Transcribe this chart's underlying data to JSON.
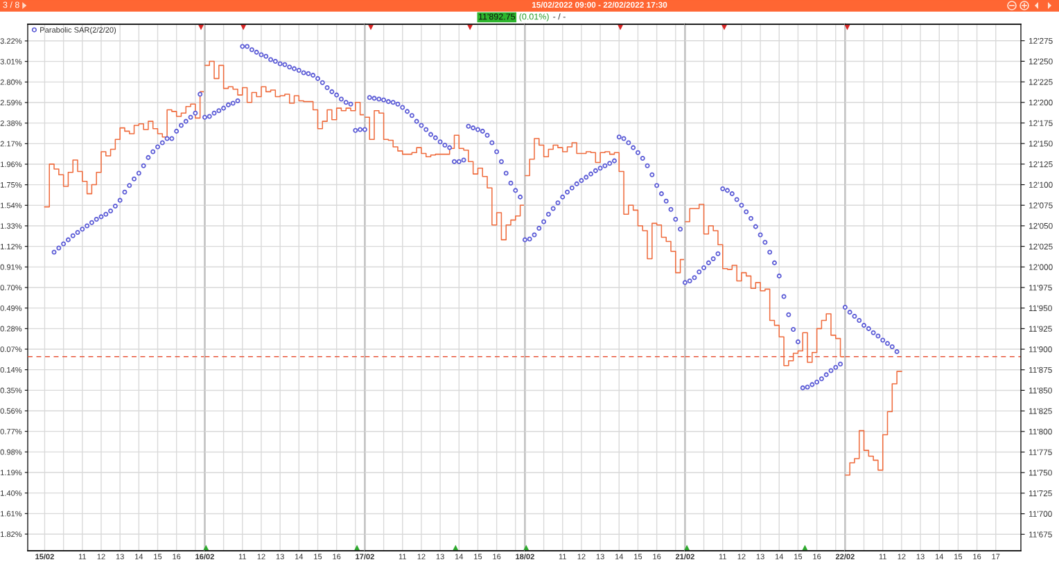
{
  "chart_data": [
    {
      "type": "step",
      "annotations": [
        "3 / 8"
      ],
      "legend": "top left",
      "grid": true,
      "xlim": [
        "2022-02-15T08:06",
        "2022-02-15T17:30"
      ],
      "xticks": [
        {
          "value": "2022-02-15T09:00",
          "label": "15/02"
        },
        {
          "value": "2022-02-15T10:00",
          "label": null
        },
        {
          "value": "2022-02-15T11:00",
          "label": "11"
        },
        {
          "value": "2022-02-15T12:00",
          "label": "12"
        },
        {
          "value": "2022-02-15T13:00",
          "label": "13"
        },
        {
          "value": "2022-02-15T14:00",
          "label": "14"
        },
        {
          "value": "2022-02-15T15:00",
          "label": "15"
        },
        {
          "value": "2022-02-15T16:00",
          "label": "16"
        },
        {
          "value": "2022-02-15T17:00",
          "label": null
        }
      ],
      "ylim": [
        -1.99,
        3.39
      ],
      "yticks": [
        {
          "value": 3.22,
          "label": "3.22%"
        },
        {
          "value": 3.01,
          "label": "3.01%"
        },
        {
          "value": 2.8,
          "label": "2.80%"
        },
        {
          "value": 2.59,
          "label": "2.59%"
        },
        {
          "value": 2.38,
          "label": "2.38%"
        },
        {
          "value": 2.17,
          "label": "2.17%"
        },
        {
          "value": 1.96,
          "label": "1.96%"
        },
        {
          "value": 1.75,
          "label": "1.75%"
        },
        {
          "value": 1.54,
          "label": "1.54%"
        },
        {
          "value": 1.33,
          "label": "1.33%"
        },
        {
          "value": 1.12,
          "label": "1.12%"
        },
        {
          "value": 0.91,
          "label": "0.91%"
        },
        {
          "value": 0.7,
          "label": "0.70%"
        },
        {
          "value": 0.49,
          "label": "0.49%"
        },
        {
          "value": 0.28,
          "label": "0.28%"
        },
        {
          "value": 0.07,
          "label": "0.07%"
        },
        {
          "value": -0.14,
          "label": "0.14%"
        },
        {
          "value": -0.35,
          "label": "0.35%"
        },
        {
          "value": -0.56,
          "label": "0.56%"
        },
        {
          "value": -0.77,
          "label": "0.77%"
        },
        {
          "value": -0.98,
          "label": "0.98%"
        },
        {
          "value": -1.19,
          "label": "1.19%"
        },
        {
          "value": -1.4,
          "label": "1.40%"
        },
        {
          "value": -1.61,
          "label": "1.61%"
        },
        {
          "value": -1.82,
          "label": "1.82%"
        }
      ],
      "y2lim": [
        11655,
        12295
      ],
      "x": [
        "2022-02-15T09:00",
        "2022-02-15T09:15",
        "2022-02-15T09:30",
        "2022-02-15T09:45",
        "2022-02-15T10:00",
        "2022-02-15T10:15",
        "2022-02-15T10:30",
        "2022-02-15T10:45",
        "2022-02-15T11:00",
        "2022-02-15T11:15",
        "2022-02-15T11:30",
        "2022-02-15T11:45",
        "2022-02-15T12:00",
        "2022-02-15T12:15",
        "2022-02-15T12:30",
        "2022-02-15T12:45",
        "2022-02-15T13:00",
        "2022-02-15T13:15",
        "2022-02-15T13:30",
        "2022-02-15T13:45",
        "2022-02-15T14:00",
        "2022-02-15T14:15",
        "2022-02-15T14:30",
        "2022-02-15T14:45",
        "2022-02-15T15:00",
        "2022-02-15T15:15",
        "2022-02-15T15:30",
        "2022-02-15T15:45",
        "2022-02-15T16:00",
        "2022-02-15T16:15",
        "2022-02-15T16:30",
        "2022-02-15T16:45",
        "2022-02-15T17:00",
        "2022-02-15T17:15",
        "2022-02-15T17:30"
      ],
      "series": [
        {
          "color": "#ef6a3b",
          "axis": "y2",
          "values": [
            12073,
            12125,
            12119,
            12112,
            12098,
            12115,
            12130,
            12116,
            12104,
            12089,
            12100,
            12115,
            12140,
            12135,
            12143,
            12155,
            12169,
            12165,
            12162,
            12172,
            12174,
            12167,
            12177,
            12168,
            12162,
            12158,
            12191,
            12189,
            12183,
            12187,
            12195,
            12198,
            12181,
            12213,
            12213
          ]
        },
        {
          "type": "scatter",
          "name": "Parabolic SAR(2/2/20)",
          "color": "#5b5bd6",
          "marker": "circle",
          "axis": "y2",
          "values": [
            null,
            null,
            12018,
            12023,
            12028,
            12033,
            12038,
            12042,
            12046,
            12050,
            12054,
            12058,
            12061,
            12064,
            12068,
            12074,
            12081,
            12091,
            12099,
            12107,
            12114,
            12123,
            12133,
            12140,
            12146,
            12151,
            12156,
            12156,
            12165,
            12172,
            12177,
            12182,
            12187,
            12210,
            null
          ]
        },
        {
          "type": "scatter",
          "color": "#d92626",
          "marker": "triangle_down",
          "axis": "y2",
          "x": [
            "2022-02-15T17:18"
          ],
          "values": [
            12291
          ]
        }
      ],
      "ref_lines": [
        {
          "axis": "y2",
          "value": 11891,
          "color": "#e8553a",
          "line_style": "dashed"
        }
      ]
    },
    {
      "type": "step",
      "grid": true,
      "tick_labels": "x",
      "xlim": [
        "2022-02-16T09:00",
        "2022-02-16T17:30"
      ],
      "xticks": [
        {
          "value": "2022-02-16T09:00",
          "label": "16/02"
        },
        {
          "value": "2022-02-16T10:00",
          "label": null
        },
        {
          "value": "2022-02-16T11:00",
          "label": "11"
        },
        {
          "value": "2022-02-16T12:00",
          "label": "12"
        },
        {
          "value": "2022-02-16T13:00",
          "label": "13"
        },
        {
          "value": "2022-02-16T14:00",
          "label": "14"
        },
        {
          "value": "2022-02-16T15:00",
          "label": "15"
        },
        {
          "value": "2022-02-16T16:00",
          "label": "16"
        },
        {
          "value": "2022-02-16T17:00",
          "label": null
        }
      ],
      "y2lim": [
        11655,
        12295
      ],
      "y2ticks": [
        {
          "value": 12275,
          "label": null
        },
        {
          "value": 12250,
          "label": null
        },
        {
          "value": 12225,
          "label": null
        },
        {
          "value": 12200,
          "label": null
        },
        {
          "value": 12175,
          "label": null
        },
        {
          "value": 12150,
          "label": null
        },
        {
          "value": 12125,
          "label": null
        },
        {
          "value": 12100,
          "label": null
        },
        {
          "value": 12075,
          "label": null
        },
        {
          "value": 12050,
          "label": null
        },
        {
          "value": 12025,
          "label": null
        },
        {
          "value": 12000,
          "label": null
        },
        {
          "value": 11975,
          "label": null
        },
        {
          "value": 11950,
          "label": null
        },
        {
          "value": 11925,
          "label": null
        },
        {
          "value": 11900,
          "label": null
        },
        {
          "value": 11875,
          "label": null
        },
        {
          "value": 11850,
          "label": null
        },
        {
          "value": 11825,
          "label": null
        },
        {
          "value": 11800,
          "label": null
        },
        {
          "value": 11775,
          "label": null
        },
        {
          "value": 11750,
          "label": null
        },
        {
          "value": 11725,
          "label": null
        },
        {
          "value": 11700,
          "label": null
        },
        {
          "value": 11675,
          "label": null
        }
      ],
      "x": [
        "2022-02-16T09:00",
        "2022-02-16T09:15",
        "2022-02-16T09:30",
        "2022-02-16T09:45",
        "2022-02-16T10:00",
        "2022-02-16T10:15",
        "2022-02-16T10:30",
        "2022-02-16T10:45",
        "2022-02-16T11:00",
        "2022-02-16T11:15",
        "2022-02-16T11:30",
        "2022-02-16T11:45",
        "2022-02-16T12:00",
        "2022-02-16T12:15",
        "2022-02-16T12:30",
        "2022-02-16T12:45",
        "2022-02-16T13:00",
        "2022-02-16T13:15",
        "2022-02-16T13:30",
        "2022-02-16T13:45",
        "2022-02-16T14:00",
        "2022-02-16T14:15",
        "2022-02-16T14:30",
        "2022-02-16T14:45",
        "2022-02-16T15:00",
        "2022-02-16T15:15",
        "2022-02-16T15:30",
        "2022-02-16T15:45",
        "2022-02-16T16:00",
        "2022-02-16T16:15",
        "2022-02-16T16:30",
        "2022-02-16T16:45",
        "2022-02-16T17:00",
        "2022-02-16T17:15",
        "2022-02-16T17:30"
      ],
      "series": [
        {
          "color": "#ef6a3b",
          "axis": "y2",
          "values": [
            12245,
            12250,
            12229,
            12245,
            12217,
            12219,
            12216,
            12209,
            12218,
            12200,
            12212,
            12207,
            12219,
            12213,
            12215,
            12207,
            12208,
            12210,
            12199,
            12208,
            12202,
            12201,
            12201,
            12191,
            12168,
            12177,
            12191,
            12179,
            12193,
            12190,
            12193,
            12190,
            12200,
            12185,
            12185
          ]
        },
        {
          "type": "scatter",
          "color": "#5b5bd6",
          "marker": "circle",
          "axis": "y2",
          "values": [
            12182,
            12183,
            12187,
            12190,
            12193,
            12197,
            12199,
            12202,
            12268,
            12268,
            12264,
            12261,
            12258,
            12256,
            12252,
            12250,
            12247,
            12246,
            12243,
            12241,
            12239,
            12236,
            12235,
            12233,
            12229,
            12224,
            12218,
            12213,
            12209,
            12204,
            12200,
            12198,
            12166,
            12167,
            null
          ]
        },
        {
          "type": "scatter",
          "color": "#d92626",
          "marker": "triangle_down",
          "axis": "y2",
          "x": [
            "2022-02-16T11:03"
          ],
          "values": [
            12291
          ]
        },
        {
          "type": "scatter",
          "color": "#2eaa2e",
          "marker": "triangle",
          "axis": "y2",
          "x": [
            "2022-02-16T09:04",
            "2022-02-16T17:05"
          ],
          "values": [
            11659,
            11659
          ]
        }
      ],
      "ref_lines": [
        {
          "axis": "y2",
          "value": 11891,
          "color": "#e8553a",
          "line_style": "dashed"
        }
      ]
    },
    {
      "type": "step",
      "grid": true,
      "tick_labels": "x",
      "xlim": [
        "2022-02-17T09:00",
        "2022-02-17T17:30"
      ],
      "xticks": [
        {
          "value": "2022-02-17T09:00",
          "label": "17/02"
        },
        {
          "value": "2022-02-17T10:00",
          "label": null
        },
        {
          "value": "2022-02-17T11:00",
          "label": "11"
        },
        {
          "value": "2022-02-17T12:00",
          "label": "12"
        },
        {
          "value": "2022-02-17T13:00",
          "label": "13"
        },
        {
          "value": "2022-02-17T14:00",
          "label": "14"
        },
        {
          "value": "2022-02-17T15:00",
          "label": "15"
        },
        {
          "value": "2022-02-17T16:00",
          "label": "16"
        },
        {
          "value": "2022-02-17T17:00",
          "label": null
        }
      ],
      "y2lim": [
        11655,
        12295
      ],
      "y2ticks": [
        {
          "value": 12275,
          "label": null
        },
        {
          "value": 12250,
          "label": null
        },
        {
          "value": 12225,
          "label": null
        },
        {
          "value": 12200,
          "label": null
        },
        {
          "value": 12175,
          "label": null
        },
        {
          "value": 12150,
          "label": null
        },
        {
          "value": 12125,
          "label": null
        },
        {
          "value": 12100,
          "label": null
        },
        {
          "value": 12075,
          "label": null
        },
        {
          "value": 12050,
          "label": null
        },
        {
          "value": 12025,
          "label": null
        },
        {
          "value": 12000,
          "label": null
        },
        {
          "value": 11975,
          "label": null
        },
        {
          "value": 11950,
          "label": null
        },
        {
          "value": 11925,
          "label": null
        },
        {
          "value": 11900,
          "label": null
        },
        {
          "value": 11875,
          "label": null
        },
        {
          "value": 11850,
          "label": null
        },
        {
          "value": 11825,
          "label": null
        },
        {
          "value": 11800,
          "label": null
        },
        {
          "value": 11775,
          "label": null
        },
        {
          "value": 11750,
          "label": null
        },
        {
          "value": 11725,
          "label": null
        },
        {
          "value": 11700,
          "label": null
        },
        {
          "value": 11675,
          "label": null
        }
      ],
      "x": [
        "2022-02-17T09:00",
        "2022-02-17T09:15",
        "2022-02-17T09:30",
        "2022-02-17T09:45",
        "2022-02-17T10:00",
        "2022-02-17T10:15",
        "2022-02-17T10:30",
        "2022-02-17T10:45",
        "2022-02-17T11:00",
        "2022-02-17T11:15",
        "2022-02-17T11:30",
        "2022-02-17T11:45",
        "2022-02-17T12:00",
        "2022-02-17T12:15",
        "2022-02-17T12:30",
        "2022-02-17T12:45",
        "2022-02-17T13:00",
        "2022-02-17T13:15",
        "2022-02-17T13:30",
        "2022-02-17T13:45",
        "2022-02-17T14:00",
        "2022-02-17T14:15",
        "2022-02-17T14:30",
        "2022-02-17T14:45",
        "2022-02-17T15:00",
        "2022-02-17T15:15",
        "2022-02-17T15:30",
        "2022-02-17T15:45",
        "2022-02-17T16:00",
        "2022-02-17T16:15",
        "2022-02-17T16:30",
        "2022-02-17T16:45",
        "2022-02-17T17:00",
        "2022-02-17T17:15",
        "2022-02-17T17:30"
      ],
      "series": [
        {
          "color": "#ef6a3b",
          "axis": "y2",
          "values": [
            12182,
            12155,
            12190,
            12187,
            12155,
            12154,
            12146,
            12141,
            12137,
            12137,
            12139,
            12145,
            12138,
            12134,
            12136,
            12137,
            12137,
            12137,
            12144,
            12160,
            12144,
            12142,
            12128,
            12113,
            12120,
            12110,
            12096,
            12051,
            12066,
            12033,
            12051,
            12057,
            12062,
            12075,
            12075
          ]
        },
        {
          "type": "scatter",
          "color": "#5b5bd6",
          "marker": "circle",
          "axis": "y2",
          "values": [
            12167,
            12206,
            12205,
            12204,
            12203,
            12201,
            12200,
            12198,
            12194,
            12189,
            12184,
            12177,
            12172,
            12167,
            12161,
            12157,
            12152,
            12148,
            12145,
            12128,
            12128,
            12130,
            12171,
            12169,
            12167,
            12165,
            12160,
            12151,
            12140,
            12128,
            12114,
            12102,
            12093,
            12085,
            null
          ]
        },
        {
          "type": "scatter",
          "color": "#d92626",
          "marker": "triangle_down",
          "axis": "y2",
          "x": [
            "2022-02-17T09:19",
            "2022-02-17T14:35"
          ],
          "values": [
            12291,
            12291
          ]
        },
        {
          "type": "scatter",
          "color": "#2eaa2e",
          "marker": "triangle",
          "axis": "y2",
          "x": [
            "2022-02-17T13:49"
          ],
          "values": [
            11659
          ]
        }
      ],
      "ref_lines": [
        {
          "axis": "y2",
          "value": 11891,
          "color": "#e8553a",
          "line_style": "dashed"
        }
      ]
    },
    {
      "type": "step",
      "title": "15/02/2022 09:00 - 22/02/2022 17:30",
      "subtitle": "11'892.75 (0.01%) - / -",
      "grid": true,
      "tick_labels": "x",
      "xlim": [
        "2022-02-18T09:00",
        "2022-02-18T17:30"
      ],
      "xticks": [
        {
          "value": "2022-02-18T09:00",
          "label": "18/02"
        },
        {
          "value": "2022-02-18T10:00",
          "label": null
        },
        {
          "value": "2022-02-18T11:00",
          "label": "11"
        },
        {
          "value": "2022-02-18T12:00",
          "label": "12"
        },
        {
          "value": "2022-02-18T13:00",
          "label": "13"
        },
        {
          "value": "2022-02-18T14:00",
          "label": "14"
        },
        {
          "value": "2022-02-18T15:00",
          "label": "15"
        },
        {
          "value": "2022-02-18T16:00",
          "label": "16"
        },
        {
          "value": "2022-02-18T17:00",
          "label": null
        }
      ],
      "y2lim": [
        11655,
        12295
      ],
      "y2ticks": [
        {
          "value": 12275,
          "label": null
        },
        {
          "value": 12250,
          "label": null
        },
        {
          "value": 12225,
          "label": null
        },
        {
          "value": 12200,
          "label": null
        },
        {
          "value": 12175,
          "label": null
        },
        {
          "value": 12150,
          "label": null
        },
        {
          "value": 12125,
          "label": null
        },
        {
          "value": 12100,
          "label": null
        },
        {
          "value": 12075,
          "label": null
        },
        {
          "value": 12050,
          "label": null
        },
        {
          "value": 12025,
          "label": null
        },
        {
          "value": 12000,
          "label": null
        },
        {
          "value": 11975,
          "label": null
        },
        {
          "value": 11950,
          "label": null
        },
        {
          "value": 11925,
          "label": null
        },
        {
          "value": 11900,
          "label": null
        },
        {
          "value": 11875,
          "label": null
        },
        {
          "value": 11850,
          "label": null
        },
        {
          "value": 11825,
          "label": null
        },
        {
          "value": 11800,
          "label": null
        },
        {
          "value": 11775,
          "label": null
        },
        {
          "value": 11750,
          "label": null
        },
        {
          "value": 11725,
          "label": null
        },
        {
          "value": 11700,
          "label": null
        },
        {
          "value": 11675,
          "label": null
        }
      ],
      "x": [
        "2022-02-18T09:00",
        "2022-02-18T09:15",
        "2022-02-18T09:30",
        "2022-02-18T09:45",
        "2022-02-18T10:00",
        "2022-02-18T10:15",
        "2022-02-18T10:30",
        "2022-02-18T10:45",
        "2022-02-18T11:00",
        "2022-02-18T11:15",
        "2022-02-18T11:30",
        "2022-02-18T11:45",
        "2022-02-18T12:00",
        "2022-02-18T12:15",
        "2022-02-18T12:30",
        "2022-02-18T12:45",
        "2022-02-18T13:00",
        "2022-02-18T13:15",
        "2022-02-18T13:30",
        "2022-02-18T13:45",
        "2022-02-18T14:00",
        "2022-02-18T14:15",
        "2022-02-18T14:30",
        "2022-02-18T14:45",
        "2022-02-18T15:00",
        "2022-02-18T15:15",
        "2022-02-18T15:30",
        "2022-02-18T15:45",
        "2022-02-18T16:00",
        "2022-02-18T16:15",
        "2022-02-18T16:30",
        "2022-02-18T16:45",
        "2022-02-18T17:00",
        "2022-02-18T17:15",
        "2022-02-18T17:30"
      ],
      "series": [
        {
          "color": "#ef6a3b",
          "axis": "y2",
          "values": [
            12111,
            12131,
            12156,
            12148,
            12134,
            12143,
            12148,
            12145,
            12140,
            12146,
            12151,
            12138,
            12138,
            12140,
            12139,
            12127,
            12139,
            12140,
            12137,
            12139,
            12116,
            12064,
            12075,
            12069,
            12050,
            12044,
            12010,
            12053,
            12051,
            12036,
            12031,
            12019,
            11993,
            12009,
            12009
          ]
        },
        {
          "type": "scatter",
          "color": "#5b5bd6",
          "marker": "circle",
          "axis": "y2",
          "values": [
            12033,
            12034,
            12039,
            12047,
            12055,
            12064,
            12071,
            12078,
            12085,
            12091,
            12096,
            12101,
            12105,
            12109,
            12113,
            12117,
            12120,
            12123,
            12126,
            12129,
            12158,
            12156,
            12151,
            12145,
            12139,
            12132,
            12123,
            12112,
            12099,
            12089,
            12080,
            12070,
            12058,
            12046,
            null
          ]
        },
        {
          "type": "scatter",
          "color": "#d92626",
          "marker": "triangle_down",
          "axis": "y2",
          "x": [
            "2022-02-18T14:04"
          ],
          "values": [
            12291
          ]
        },
        {
          "type": "scatter",
          "color": "#2eaa2e",
          "marker": "triangle",
          "axis": "y2",
          "x": [
            "2022-02-18T09:04"
          ],
          "values": [
            11659
          ]
        }
      ],
      "ref_lines": [
        {
          "axis": "y2",
          "value": 11891,
          "color": "#e8553a",
          "line_style": "dashed"
        }
      ]
    },
    {
      "type": "step",
      "grid": true,
      "tick_labels": "x",
      "xlim": [
        "2022-02-21T09:00",
        "2022-02-21T17:30"
      ],
      "xticks": [
        {
          "value": "2022-02-21T09:00",
          "label": "21/02"
        },
        {
          "value": "2022-02-21T10:00",
          "label": null
        },
        {
          "value": "2022-02-21T11:00",
          "label": "11"
        },
        {
          "value": "2022-02-21T12:00",
          "label": "12"
        },
        {
          "value": "2022-02-21T13:00",
          "label": "13"
        },
        {
          "value": "2022-02-21T14:00",
          "label": "14"
        },
        {
          "value": "2022-02-21T15:00",
          "label": "15"
        },
        {
          "value": "2022-02-21T16:00",
          "label": "16"
        },
        {
          "value": "2022-02-21T17:00",
          "label": null
        }
      ],
      "y2lim": [
        11655,
        12295
      ],
      "y2ticks": [
        {
          "value": 12275,
          "label": null
        },
        {
          "value": 12250,
          "label": null
        },
        {
          "value": 12225,
          "label": null
        },
        {
          "value": 12200,
          "label": null
        },
        {
          "value": 12175,
          "label": null
        },
        {
          "value": 12150,
          "label": null
        },
        {
          "value": 12125,
          "label": null
        },
        {
          "value": 12100,
          "label": null
        },
        {
          "value": 12075,
          "label": null
        },
        {
          "value": 12050,
          "label": null
        },
        {
          "value": 12025,
          "label": null
        },
        {
          "value": 12000,
          "label": null
        },
        {
          "value": 11975,
          "label": null
        },
        {
          "value": 11950,
          "label": null
        },
        {
          "value": 11925,
          "label": null
        },
        {
          "value": 11900,
          "label": null
        },
        {
          "value": 11875,
          "label": null
        },
        {
          "value": 11850,
          "label": null
        },
        {
          "value": 11825,
          "label": null
        },
        {
          "value": 11800,
          "label": null
        },
        {
          "value": 11775,
          "label": null
        },
        {
          "value": 11750,
          "label": null
        },
        {
          "value": 11725,
          "label": null
        },
        {
          "value": 11700,
          "label": null
        },
        {
          "value": 11675,
          "label": null
        }
      ],
      "x": [
        "2022-02-21T09:00",
        "2022-02-21T09:15",
        "2022-02-21T09:30",
        "2022-02-21T09:45",
        "2022-02-21T10:00",
        "2022-02-21T10:15",
        "2022-02-21T10:30",
        "2022-02-21T10:45",
        "2022-02-21T11:00",
        "2022-02-21T11:15",
        "2022-02-21T11:30",
        "2022-02-21T11:45",
        "2022-02-21T12:00",
        "2022-02-21T12:15",
        "2022-02-21T12:30",
        "2022-02-21T12:45",
        "2022-02-21T13:00",
        "2022-02-21T13:15",
        "2022-02-21T13:30",
        "2022-02-21T13:45",
        "2022-02-21T14:00",
        "2022-02-21T14:15",
        "2022-02-21T14:30",
        "2022-02-21T14:45",
        "2022-02-21T15:00",
        "2022-02-21T15:15",
        "2022-02-21T15:30",
        "2022-02-21T15:45",
        "2022-02-21T16:00",
        "2022-02-21T16:15",
        "2022-02-21T16:30",
        "2022-02-21T16:45",
        "2022-02-21T17:00",
        "2022-02-21T17:15",
        "2022-02-21T17:30"
      ],
      "series": [
        {
          "color": "#ef6a3b",
          "axis": "y2",
          "values": [
            12055,
            12071,
            12071,
            12076,
            12040,
            12050,
            12044,
            12027,
            11998,
            11997,
            12002,
            11983,
            11993,
            11989,
            11974,
            11981,
            11971,
            11973,
            11935,
            11929,
            11915,
            11880,
            11886,
            11895,
            11898,
            11920,
            11884,
            11896,
            11925,
            11935,
            11943,
            11917,
            11913,
            11891,
            11891
          ]
        },
        {
          "type": "scatter",
          "color": "#5b5bd6",
          "marker": "circle",
          "axis": "y2",
          "values": [
            11981,
            11983,
            11987,
            11994,
            11999,
            12005,
            12010,
            12016,
            12095,
            12093,
            12089,
            12082,
            12075,
            12067,
            12059,
            12049,
            12039,
            12030,
            12018,
            12005,
            11989,
            11964,
            11942,
            11924,
            11909,
            11853,
            11854,
            11857,
            11860,
            11864,
            11869,
            11874,
            11878,
            11882,
            null
          ]
        },
        {
          "type": "scatter",
          "color": "#d92626",
          "marker": "triangle_down",
          "axis": "y2",
          "x": [
            "2022-02-21T11:05"
          ],
          "values": [
            12291
          ]
        },
        {
          "type": "scatter",
          "color": "#2eaa2e",
          "marker": "triangle",
          "axis": "y2",
          "x": [
            "2022-02-21T09:06",
            "2022-02-21T15:22"
          ],
          "values": [
            11659,
            11659
          ]
        }
      ],
      "ref_lines": [
        {
          "axis": "y2",
          "value": 11891,
          "color": "#e8553a",
          "line_style": "dashed"
        }
      ]
    },
    {
      "type": "step",
      "grid": true,
      "xlim": [
        "2022-02-22T09:00",
        "2022-02-22T18:20"
      ],
      "xticks": [
        {
          "value": "2022-02-22T09:00",
          "label": "22/02"
        },
        {
          "value": "2022-02-22T10:00",
          "label": null
        },
        {
          "value": "2022-02-22T11:00",
          "label": "11"
        },
        {
          "value": "2022-02-22T12:00",
          "label": "12"
        },
        {
          "value": "2022-02-22T13:00",
          "label": "13"
        },
        {
          "value": "2022-02-22T14:00",
          "label": "14"
        },
        {
          "value": "2022-02-22T15:00",
          "label": "15"
        },
        {
          "value": "2022-02-22T16:00",
          "label": "16"
        },
        {
          "value": "2022-02-22T17:00",
          "label": "17"
        }
      ],
      "y2lim": [
        11655,
        12295
      ],
      "y2ticks": [
        {
          "value": 12275,
          "label": "12'275"
        },
        {
          "value": 12250,
          "label": "12'250"
        },
        {
          "value": 12225,
          "label": "12'225"
        },
        {
          "value": 12200,
          "label": "12'200"
        },
        {
          "value": 12175,
          "label": "12'175"
        },
        {
          "value": 12150,
          "label": "12'150"
        },
        {
          "value": 12125,
          "label": "12'125"
        },
        {
          "value": 12100,
          "label": "12'100"
        },
        {
          "value": 12075,
          "label": "12'075"
        },
        {
          "value": 12050,
          "label": "12'050"
        },
        {
          "value": 12025,
          "label": "12'025"
        },
        {
          "value": 12000,
          "label": "12'000"
        },
        {
          "value": 11975,
          "label": "11'975"
        },
        {
          "value": 11950,
          "label": "11'950"
        },
        {
          "value": 11925,
          "label": "11'925"
        },
        {
          "value": 11900,
          "label": "11'900"
        },
        {
          "value": 11875,
          "label": "11'875"
        },
        {
          "value": 11850,
          "label": "11'850"
        },
        {
          "value": 11825,
          "label": "11'825"
        },
        {
          "value": 11800,
          "label": "11'800"
        },
        {
          "value": 11775,
          "label": "11'775"
        },
        {
          "value": 11750,
          "label": "11'750"
        },
        {
          "value": 11725,
          "label": "11'725"
        },
        {
          "value": 11700,
          "label": "11'700"
        },
        {
          "value": 11675,
          "label": "11'675"
        }
      ],
      "x": [
        "2022-02-22T09:00",
        "2022-02-22T09:15",
        "2022-02-22T09:30",
        "2022-02-22T09:45",
        "2022-02-22T10:00",
        "2022-02-22T10:15",
        "2022-02-22T10:30",
        "2022-02-22T10:45",
        "2022-02-22T11:00",
        "2022-02-22T11:15",
        "2022-02-22T11:30",
        "2022-02-22T11:45",
        "2022-02-22T12:00"
      ],
      "series": [
        {
          "color": "#ef6a3b",
          "axis": "y2",
          "values": [
            11747,
            11762,
            11767,
            11801,
            11777,
            11770,
            11765,
            11753,
            11796,
            11824,
            11858,
            11873,
            11873
          ]
        },
        {
          "type": "scatter",
          "color": "#5b5bd6",
          "marker": "circle",
          "axis": "y2",
          "values": [
            11951,
            11945,
            11940,
            11935,
            11929,
            11925,
            11920,
            11916,
            11911,
            11907,
            11903,
            11897,
            null
          ]
        },
        {
          "type": "scatter",
          "color": "#d92626",
          "marker": "triangle_down",
          "axis": "y2",
          "x": [
            "2022-02-22T09:07"
          ],
          "values": [
            12291
          ]
        }
      ],
      "ref_lines": [
        {
          "axis": "y2",
          "value": 11891,
          "color": "#e8553a",
          "line_style": "dashed"
        }
      ]
    }
  ]
}
